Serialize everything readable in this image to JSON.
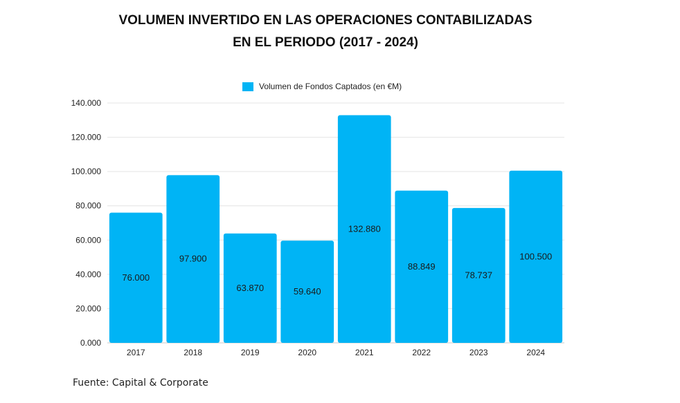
{
  "chart_data": {
    "type": "bar",
    "title_line1": "VOLUMEN INVERTIDO EN LAS OPERACIONES CONTABILIZADAS",
    "title_line2": "EN EL PERIODO (2017 - 2024)",
    "categories": [
      "2017",
      "2018",
      "2019",
      "2020",
      "2021",
      "2022",
      "2023",
      "2024"
    ],
    "series": [
      {
        "name": "Volumen de Fondos Captados (en €M)",
        "values": [
          76000,
          97900,
          63870,
          59640,
          132880,
          88849,
          78737,
          100500
        ],
        "labels": [
          "76.000",
          "97.900",
          "63.870",
          "59.640",
          "132.880",
          "88.849",
          "78.737",
          "100.500"
        ],
        "color": "#00B4F5"
      }
    ],
    "yticks": [
      "0.000",
      "20.000",
      "40.000",
      "60.000",
      "80.000",
      "100.000",
      "120.000",
      "140.000"
    ],
    "ylim": [
      0,
      140000
    ],
    "legend_position": "top-center",
    "grid": true
  },
  "source": "Fuente: Capital & Corporate"
}
